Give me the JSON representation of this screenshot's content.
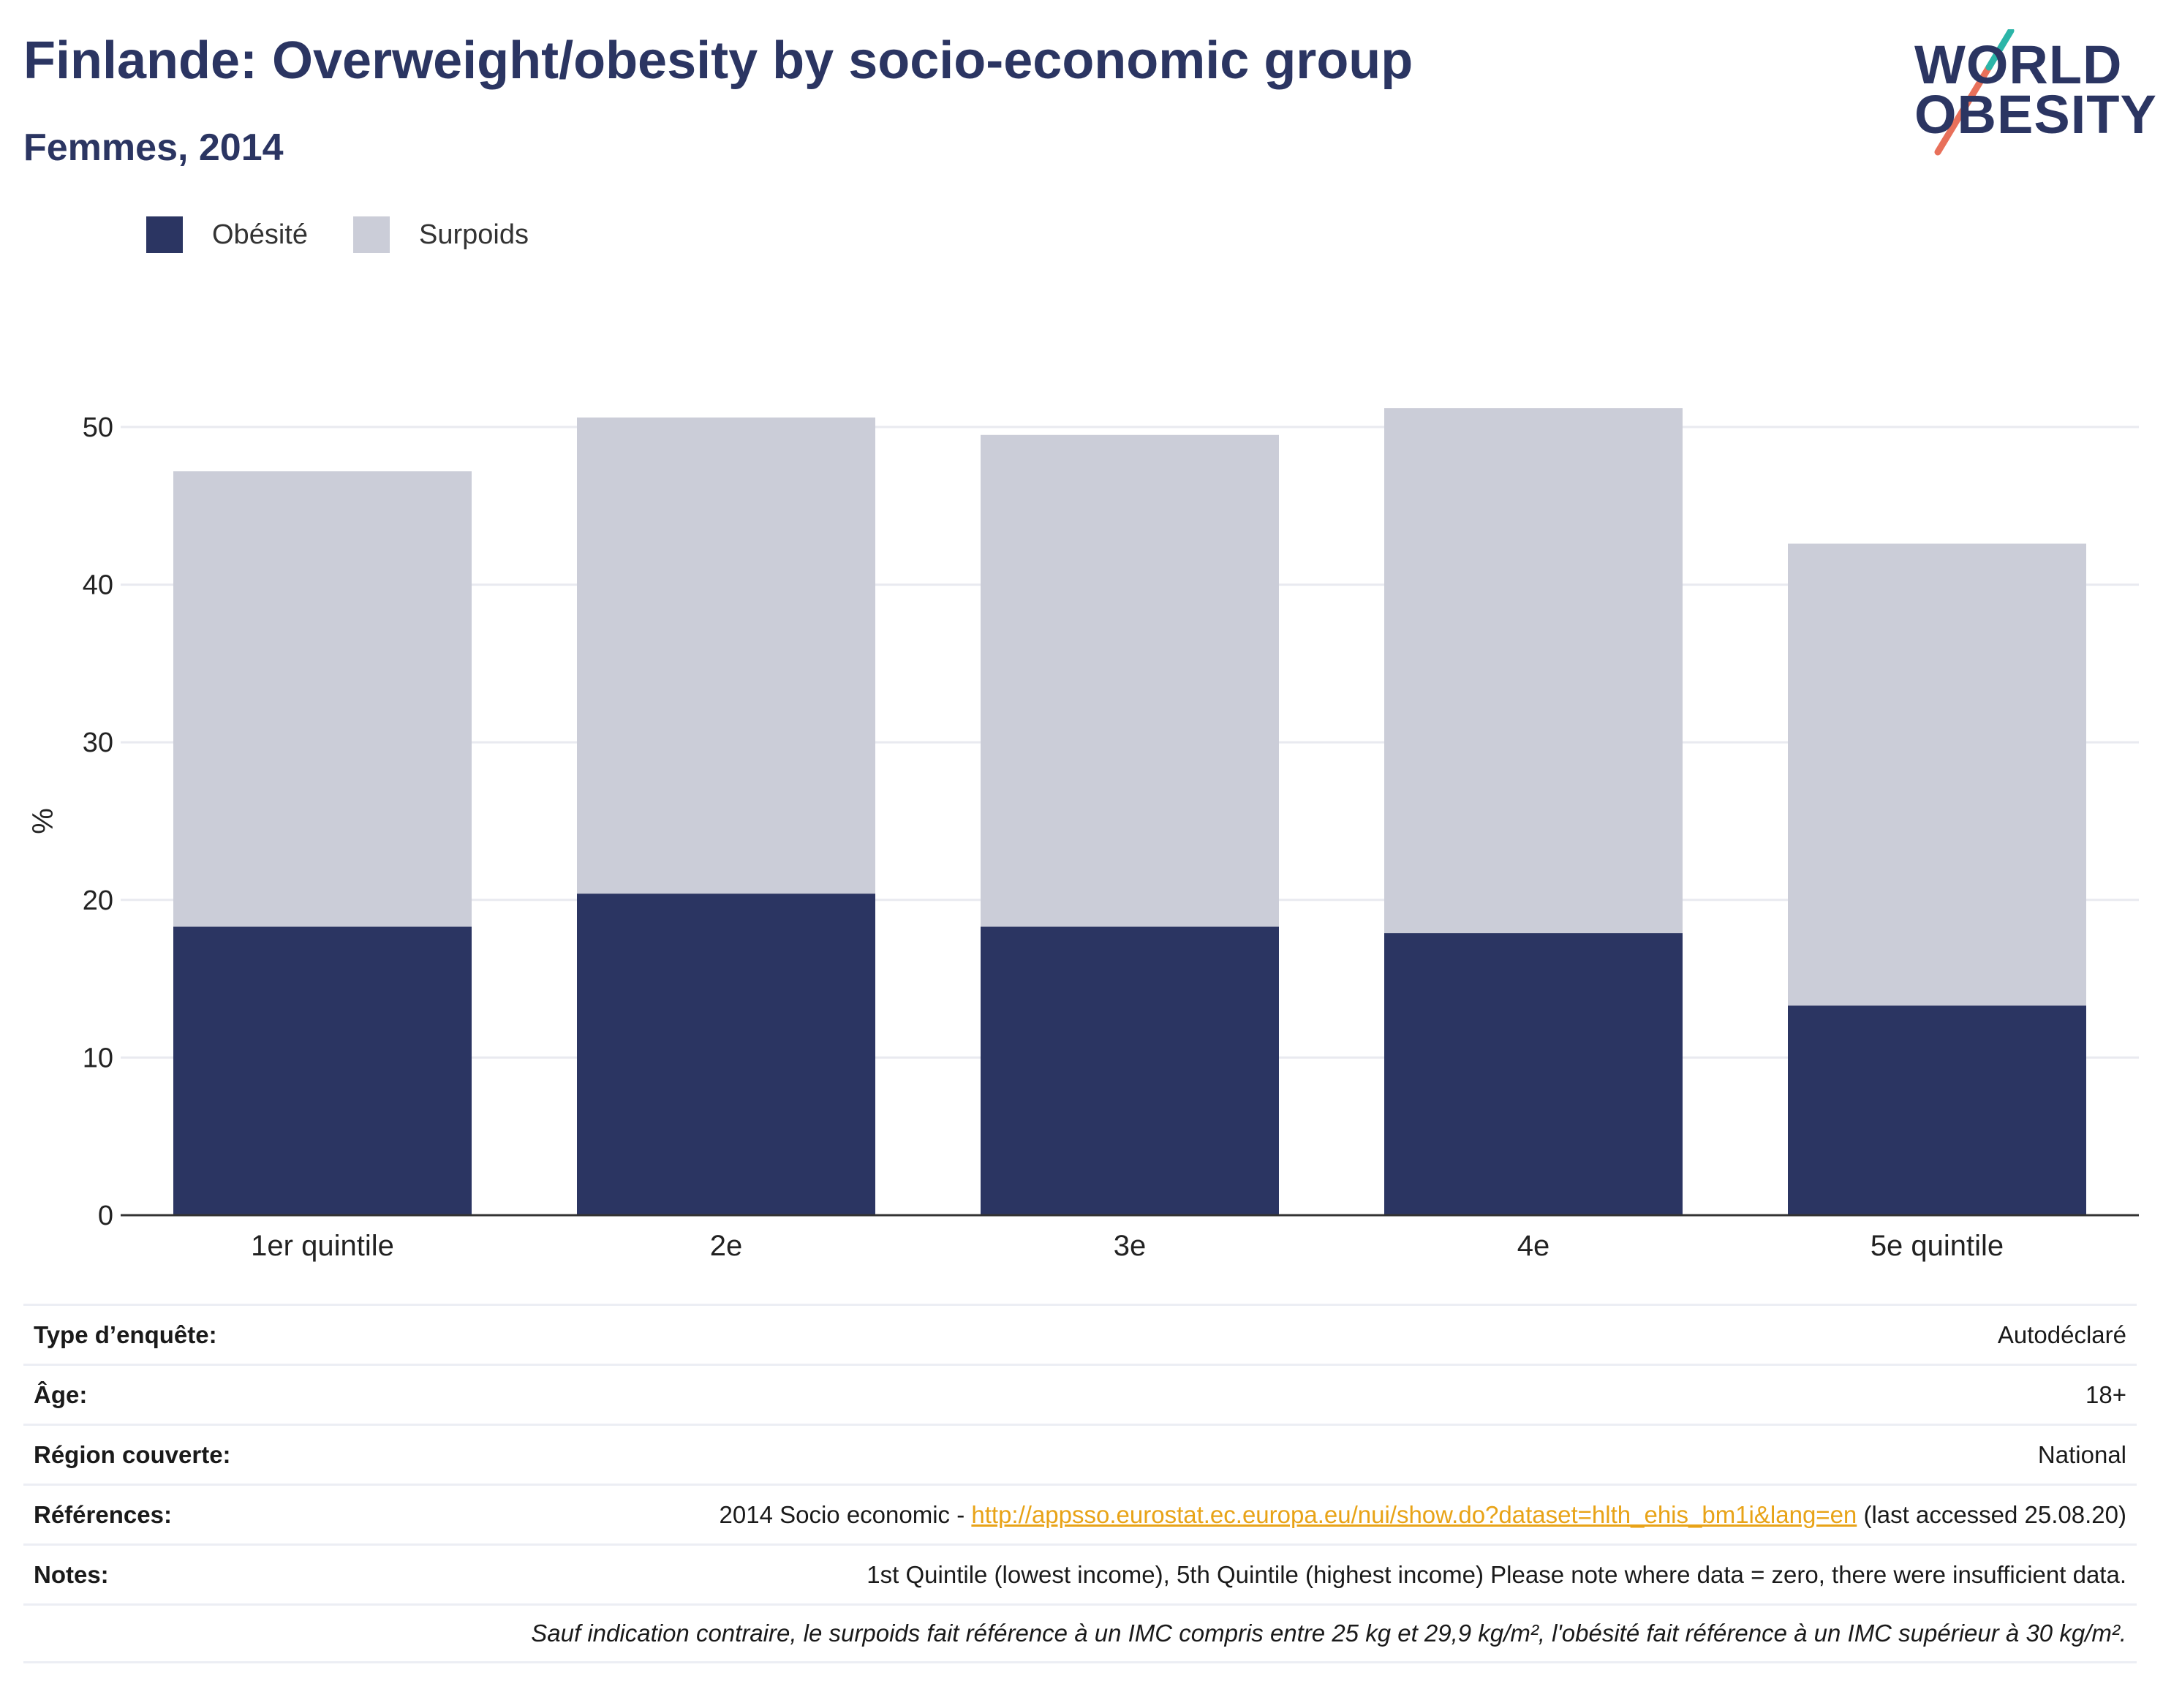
{
  "title": "Finlande: Overweight/obesity by socio-economic group",
  "subtitle": "Femmes, 2014",
  "logo": {
    "line1": "WORLD",
    "line2": "OBESITY"
  },
  "legend": [
    {
      "label": "Obésité",
      "color": "#2b3562"
    },
    {
      "label": "Surpoids",
      "color": "#cbcdd8"
    }
  ],
  "chart_data": {
    "type": "bar",
    "stacked": true,
    "categories": [
      "1er quintile",
      "2e",
      "3e",
      "4e",
      "5e quintile"
    ],
    "series": [
      {
        "name": "Obésité",
        "values": [
          18.3,
          20.4,
          18.3,
          17.9,
          13.3
        ],
        "color": "#2b3562"
      },
      {
        "name": "Surpoids",
        "values": [
          28.9,
          30.2,
          31.2,
          33.3,
          29.3
        ],
        "color": "#cbcdd8"
      }
    ],
    "ylabel": "%",
    "ylim": [
      0,
      55
    ],
    "yticks": [
      0,
      10,
      20,
      30,
      40,
      50
    ],
    "grid": true,
    "legend_position": "top-left"
  },
  "info": {
    "survey_type": {
      "label": "Type d’enquête:",
      "value": "Autodéclaré"
    },
    "age": {
      "label": "Âge:",
      "value": "18+"
    },
    "region": {
      "label": "Région couverte:",
      "value": "National"
    },
    "references": {
      "label": "Références:",
      "prefix": "2014 Socio economic - ",
      "link": "http://appsso.eurostat.ec.europa.eu/nui/show.do?dataset=hlth_ehis_bm1i&lang=en",
      "suffix": " (last accessed 25.08.20)"
    },
    "notes": {
      "label": "Notes:",
      "value": "1st Quintile (lowest income), 5th Quintile (highest income) Please note where data = zero, there were insufficient data."
    },
    "footnote": "Sauf indication contraire, le surpoids fait référence à un IMC compris entre 25 kg et 29,9 kg/m², l'obésité fait référence à un IMC supérieur à 30 kg/m²."
  }
}
